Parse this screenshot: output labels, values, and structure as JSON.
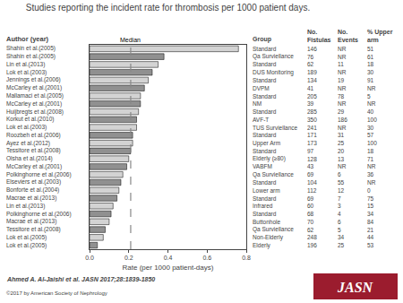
{
  "chart_data": {
    "type": "bar",
    "orientation": "horizontal",
    "title": "Studies reporting the incident rate for thrombosis per 1000 patient days.",
    "x_label": "Rate (per 1000 patient-days)",
    "category_header": "Author (year)",
    "categories": [
      "Shahin et al.(2005)",
      "Shahin et al.(2005)",
      "Lin et al.(2013)",
      "Lok et al.(2003)",
      "Jennings et al.(2006)",
      "McCarley et al.(2001)",
      "Mallamaci et al.(2005)",
      "McCarley et al.(2001)",
      "Huijbregts et al.(2008)",
      "Korkut et al.(2010)",
      "Lok et al.(2003)",
      "Roozbeh et al.(2006)",
      "Ayez et al.(2012)",
      "Tessitore et al.(2008)",
      "Olsha et al.(2014)",
      "McCarley et al.(2001)",
      "Polkinghorne et al.(2006)",
      "Elseviers et al.(2003)",
      "Bonforte et al.(2004)",
      "Macrae et al.(2013)",
      "Lin et al.(2013)",
      "Polkinghorne et al.(2006)",
      "Macrae et al.(2013)",
      "Tessitore et al.(2008)",
      "Lok et al.(2005)",
      "Lok et al.(2005)"
    ],
    "values": [
      0.76,
      0.38,
      0.35,
      0.32,
      0.3,
      0.28,
      0.26,
      0.26,
      0.25,
      0.24,
      0.24,
      0.22,
      0.22,
      0.21,
      0.2,
      0.19,
      0.17,
      0.16,
      0.15,
      0.14,
      0.12,
      0.11,
      0.1,
      0.08,
      0.07,
      0.04
    ],
    "colors": [
      "#d3d3d3",
      "#909090",
      "#d3d3d3",
      "#909090",
      "#d3d3d3",
      "#909090",
      "#d3d3d3",
      "#909090",
      "#d3d3d3",
      "#909090",
      "#d3d3d3",
      "#909090",
      "#d3d3d3",
      "#909090",
      "#d3d3d3",
      "#909090",
      "#d3d3d3",
      "#909090",
      "#d3d3d3",
      "#909090",
      "#d3d3d3",
      "#909090",
      "#d3d3d3",
      "#909090",
      "#d3d3d3",
      "#909090"
    ],
    "edge_color": "#000000",
    "median": 0.21,
    "median_label": "Median",
    "median_color": "#888888",
    "xlim": [
      0.0,
      0.8
    ],
    "xticks": [
      {
        "value": 0.0,
        "label": "0.0"
      },
      {
        "value": 0.2,
        "label": "0.2"
      },
      {
        "value": 0.4,
        "label": "0.4"
      },
      {
        "value": 0.6,
        "label": "0.6"
      },
      {
        "value": 0.8,
        "label": "0.8"
      }
    ],
    "grid": false,
    "tick_labels": "x",
    "columns": [
      {
        "header": [
          "Group"
        ],
        "values": [
          "Standard",
          "Qa Surviellance",
          "Standard",
          "DUS Monitoring",
          "Standard",
          "DVPM",
          "Standard",
          "NM",
          "Standard",
          "AVF-T",
          "TUS Surviellance",
          "Standard",
          "Upper Arm",
          "Standard",
          "Elderly (≥80)",
          "VABFM",
          "Qa Surviellance",
          "Standard",
          "Lower arm",
          "Standard",
          "Infrared",
          "Standard",
          "Buttonhole",
          "Qa Surviellance",
          "Non-Elderly",
          "Elderly"
        ]
      },
      {
        "header": [
          "No.",
          "Fistulas"
        ],
        "values": [
          "146",
          "76",
          "62",
          "189",
          "134",
          "41",
          "205",
          "39",
          "285",
          "350",
          "241",
          "171",
          "173",
          "97",
          "128",
          "43",
          "69",
          "104",
          "112",
          "69",
          "60",
          "68",
          "70",
          "62",
          "248",
          "196"
        ]
      },
      {
        "header": [
          "No.",
          "Events"
        ],
        "values": [
          "NR",
          "NR",
          "11",
          "NR",
          "19",
          "NR",
          "78",
          "NR",
          "29",
          "186",
          "NR",
          "31",
          "25",
          "20",
          "13",
          "NR",
          "6",
          "55",
          "12",
          "7",
          "3",
          "4",
          "6",
          "5",
          "34",
          "25"
        ]
      },
      {
        "header": [
          "% Upper",
          "arm"
        ],
        "values": [
          "51",
          "61",
          "18",
          "30",
          "91",
          "NR",
          "5",
          "NR",
          "40",
          "100",
          "30",
          "57",
          "100",
          "18",
          "71",
          "NR",
          "36",
          "NR",
          "0",
          "75",
          "15",
          "34",
          "84",
          "21",
          "44",
          "53"
        ]
      }
    ],
    "footer": "Ahmed A. Al-Jaishi et al. JASN 2017;28:1839-1850",
    "copyright": "©2017 by American Society of Nephrology",
    "logo": {
      "text": "JASN",
      "color": "#9b1c2e"
    }
  }
}
